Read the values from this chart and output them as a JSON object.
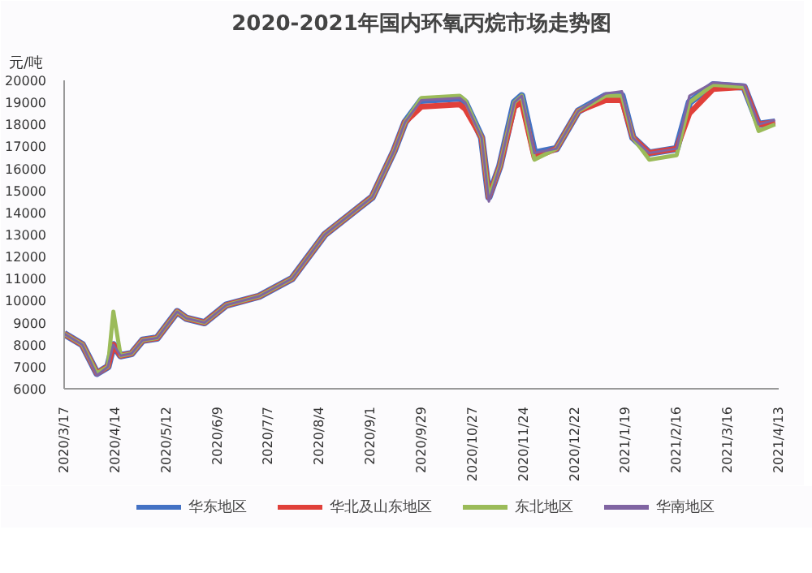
{
  "chart_data": {
    "type": "line",
    "title": "2020-2021年国内环氧丙烷市场走势图",
    "ylabel": "元/吨",
    "x": [
      "2020-03-17",
      "2020-03-27",
      "2020-04-04",
      "2020-04-10",
      "2020-04-13",
      "2020-04-17",
      "2020-04-23",
      "2020-04-29",
      "2020-05-07",
      "2020-05-18",
      "2020-05-23",
      "2020-06-02",
      "2020-06-14",
      "2020-07-02",
      "2020-07-20",
      "2020-08-07",
      "2020-09-02",
      "2020-09-14",
      "2020-09-20",
      "2020-09-29",
      "2020-10-20",
      "2020-10-23",
      "2020-11-01",
      "2020-11-05",
      "2020-11-11",
      "2020-11-19",
      "2020-11-23",
      "2020-11-30",
      "2020-12-12",
      "2020-12-24",
      "2021-01-08",
      "2021-01-17",
      "2021-01-23",
      "2021-02-01",
      "2021-02-16",
      "2021-02-23",
      "2021-03-08",
      "2021-03-25",
      "2021-04-02",
      "2021-04-11"
    ],
    "series": [
      {
        "name": "华东地区",
        "color": "#4472c4",
        "values": [
          8500,
          8000,
          6700,
          7000,
          8000,
          7500,
          7600,
          8200,
          8300,
          9500,
          9200,
          9000,
          9800,
          10200,
          11000,
          13000,
          14700,
          16800,
          18100,
          19100,
          19200,
          19000,
          17400,
          14700,
          16100,
          19000,
          19300,
          16700,
          16900,
          18600,
          19300,
          19300,
          17400,
          16700,
          16900,
          19000,
          19800,
          19700,
          18000,
          18100
        ]
      },
      {
        "name": "华北及山东地区",
        "color": "#e0403a",
        "values": [
          8500,
          8000,
          6700,
          7000,
          8000,
          7500,
          7600,
          8200,
          8300,
          9500,
          9200,
          9000,
          9800,
          10200,
          11000,
          13000,
          14700,
          16800,
          18100,
          18800,
          18900,
          18700,
          17400,
          14700,
          16100,
          18800,
          19000,
          16500,
          16900,
          18600,
          19100,
          19100,
          17400,
          16700,
          16900,
          18500,
          19600,
          19700,
          18000,
          18100
        ]
      },
      {
        "name": "东北地区",
        "color": "#9bbb59",
        "values": [
          8500,
          8000,
          6700,
          7000,
          9500,
          7500,
          7600,
          8200,
          8300,
          9500,
          9200,
          9000,
          9800,
          10200,
          11000,
          13000,
          14700,
          16800,
          18100,
          19200,
          19300,
          19100,
          17400,
          14700,
          16100,
          19000,
          19300,
          16400,
          16900,
          18600,
          19300,
          19300,
          17400,
          16400,
          16600,
          19000,
          19800,
          19700,
          17700,
          18000
        ]
      },
      {
        "name": "华南地区",
        "color": "#8064a2",
        "values": [
          8500,
          8000,
          6600,
          7000,
          8000,
          7500,
          7600,
          8200,
          8300,
          9500,
          9200,
          9000,
          9800,
          10200,
          11000,
          13000,
          14700,
          16800,
          18100,
          19100,
          19200,
          19000,
          17400,
          14500,
          16100,
          19000,
          19300,
          16700,
          16900,
          18600,
          19400,
          19500,
          17400,
          16700,
          16900,
          19300,
          19900,
          19800,
          18000,
          18200
        ]
      }
    ],
    "xlim": [
      "2020-03-17",
      "2021-04-13"
    ],
    "xticks": [
      {
        "value": "2020-03-17",
        "label": "2020/3/17"
      },
      {
        "value": "2020-04-14",
        "label": "2020/4/14"
      },
      {
        "value": "2020-05-12",
        "label": "2020/5/12"
      },
      {
        "value": "2020-06-09",
        "label": "2020/6/9"
      },
      {
        "value": "2020-07-07",
        "label": "2020/7/7"
      },
      {
        "value": "2020-08-04",
        "label": "2020/8/4"
      },
      {
        "value": "2020-09-01",
        "label": "2020/9/1"
      },
      {
        "value": "2020-09-29",
        "label": "2020/9/29"
      },
      {
        "value": "2020-10-27",
        "label": "2020/10/27"
      },
      {
        "value": "2020-11-24",
        "label": "2020/11/24"
      },
      {
        "value": "2020-12-22",
        "label": "2020/12/22"
      },
      {
        "value": "2021-01-19",
        "label": "2021/1/19"
      },
      {
        "value": "2021-02-16",
        "label": "2021/2/16"
      },
      {
        "value": "2021-03-16",
        "label": "2021/3/16"
      },
      {
        "value": "2021-04-13",
        "label": "2021/4/13"
      }
    ],
    "ylim": [
      6000,
      20000
    ],
    "yticks": [
      6000,
      7000,
      8000,
      9000,
      10000,
      11000,
      12000,
      13000,
      14000,
      15000,
      16000,
      17000,
      18000,
      19000,
      20000
    ],
    "grid": false,
    "legend": "bottom",
    "marker": "none",
    "line_style": "solid"
  }
}
